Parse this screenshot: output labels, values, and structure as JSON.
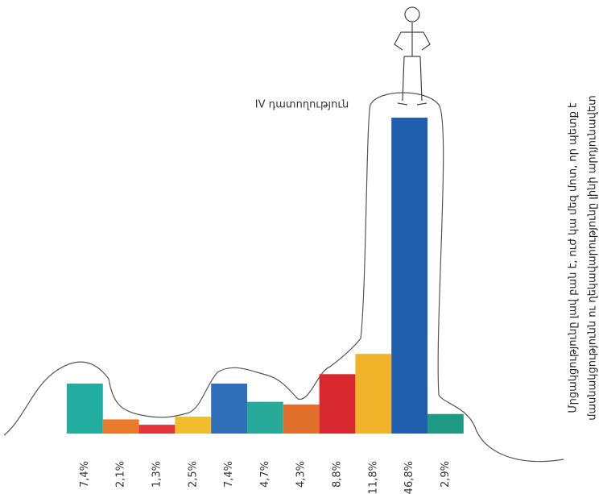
{
  "chart_data": {
    "type": "bar",
    "annotation": "IV դատողություն",
    "side_text": [
      "Մրցակցությունը լավ բան է, ուժ կա մեզ մոտ, որ պետք է",
      "մասնակցությունն ու ղեկավարությունը լինի արդյունավետ"
    ],
    "categories": [
      null,
      null,
      null,
      null,
      null,
      null,
      null,
      null,
      null,
      null,
      null
    ],
    "values": [
      7.4,
      2.1,
      1.3,
      2.5,
      7.4,
      4.7,
      4.3,
      8.8,
      11.8,
      46.8,
      2.9
    ],
    "value_labels": [
      "7,4%",
      "2,1%",
      "1,3%",
      "2,5%",
      "7,4%",
      "4,7%",
      "4,3%",
      "8,8%",
      "11,8%",
      "46,8%",
      "2,9%"
    ],
    "colors": [
      "#21ada0",
      "#e97a2b",
      "#e3343a",
      "#f1bc2e",
      "#2e6fb8",
      "#27a99a",
      "#e06f2c",
      "#d7292f",
      "#f0b32a",
      "#1f5fae",
      "#1f9a85"
    ],
    "ylim": [
      0,
      46.8
    ]
  }
}
